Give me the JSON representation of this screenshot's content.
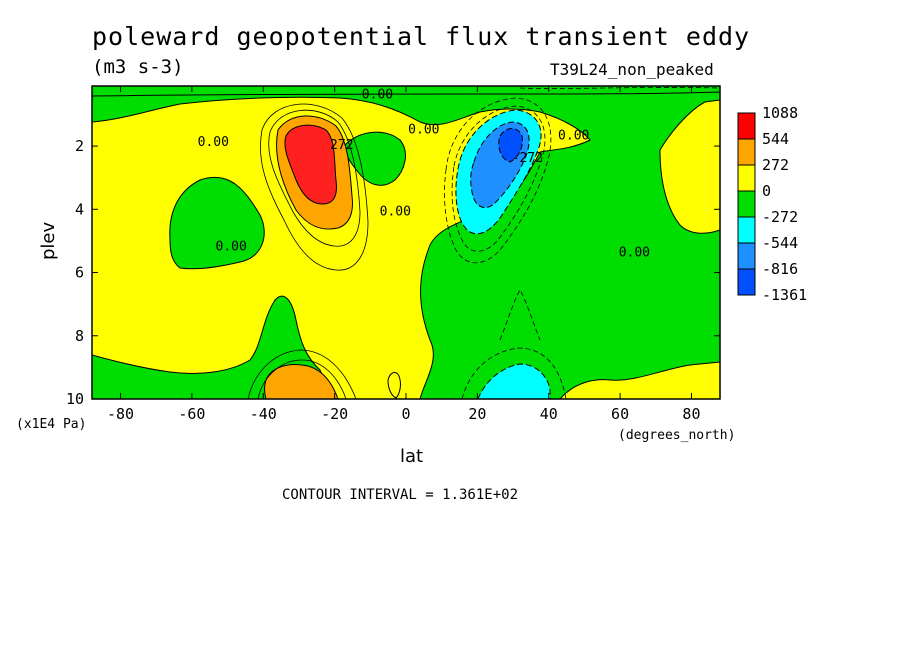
{
  "header": {
    "title": "poleward geopotential flux transient eddy",
    "units": "(m3 s-3)",
    "run": "T39L24_non_peaked"
  },
  "footer": {
    "contour_interval": "CONTOUR INTERVAL = 1.361E+02"
  },
  "chart_data": {
    "type": "heatmap",
    "xlabel": "lat",
    "xunits": "(degrees_north)",
    "ylabel": "plev",
    "yunits": "(x1E4 Pa)",
    "xlim": [
      -88,
      88
    ],
    "ylim": [
      10,
      0.1
    ],
    "x_ticks": [
      -80,
      -60,
      -40,
      -20,
      0,
      20,
      40,
      60,
      80
    ],
    "y_ticks": [
      2,
      4,
      6,
      8,
      10
    ],
    "legend": {
      "position": "right",
      "levels": [
        "1088",
        "544",
        "272",
        "0",
        "-272",
        "-544",
        "-816",
        "-1361"
      ],
      "colors": [
        "#ff0000",
        "#ffa500",
        "#ffff00",
        "#00dd00",
        "#00ffff",
        "#1e90ff",
        "#0050ff"
      ]
    },
    "contour_labels": [
      {
        "text": "0.00",
        "x": -54,
        "y": 2.0
      },
      {
        "text": "0.00",
        "x": -49,
        "y": 5.3
      },
      {
        "text": "0.00",
        "x": -8,
        "y": 0.5
      },
      {
        "text": "0.00",
        "x": 5,
        "y": 1.6
      },
      {
        "text": "0.00",
        "x": -3,
        "y": 4.2
      },
      {
        "text": "0.00",
        "x": 47,
        "y": 1.8
      },
      {
        "text": "0.00",
        "x": 64,
        "y": 5.5
      },
      {
        "text": "272",
        "x": -18,
        "y": 2.1
      },
      {
        "text": "-272",
        "x": 34,
        "y": 2.5
      }
    ],
    "features": [
      {
        "name": "southern jet maximum",
        "lat": -27,
        "plev": 2.5,
        "value": 1088
      },
      {
        "name": "northern minimum",
        "lat": 28,
        "plev": 2.0,
        "value": -1361
      },
      {
        "name": "southern surface maximum",
        "lat": -30,
        "plev": 9.8,
        "value": 544
      },
      {
        "name": "northern surface minimum",
        "lat": 28,
        "plev": 9.8,
        "value": -544
      }
    ]
  }
}
